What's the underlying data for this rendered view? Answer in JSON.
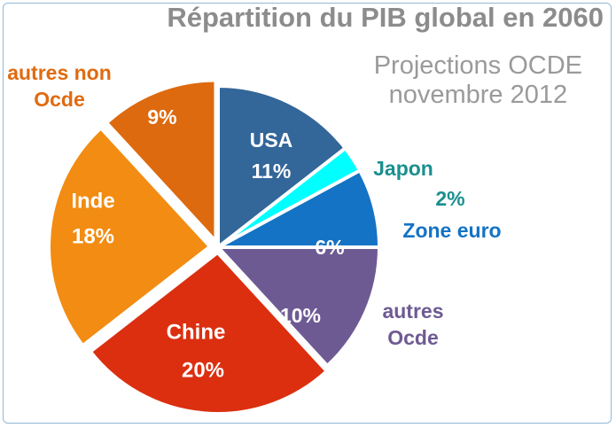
{
  "chart_data": {
    "type": "pie",
    "title": "Répartition du PIB global en 2060",
    "subtitle": [
      "Projections OCDE",
      "novembre 2012"
    ],
    "slices": [
      {
        "label": "USA",
        "value": 11,
        "display": "11%",
        "color": "#336699",
        "label_color": "#ffffff",
        "label_inside": true
      },
      {
        "label": "Japon",
        "value": 2,
        "display": "2%",
        "color": "#00ffff",
        "label_color": "#1a8f8f",
        "label_inside": false
      },
      {
        "label": "Zone euro",
        "value": 6,
        "display": "6%",
        "color": "#1473c4",
        "label_color": "#1473c4",
        "label_inside": false
      },
      {
        "label": "autres Ocde",
        "value": 10,
        "display": "10%",
        "color": "#6e5a93",
        "label_color": "#6e5a93",
        "label_inside": false
      },
      {
        "label": "Chine",
        "value": 20,
        "display": "20%",
        "color": "#db2f10",
        "label_color": "#ffffff",
        "label_inside": true
      },
      {
        "label": "Inde",
        "value": 18,
        "display": "18%",
        "color": "#f28c12",
        "label_color": "#ffffff",
        "label_inside": true
      },
      {
        "label": "autres non Ocde",
        "value": 9,
        "display": "9%",
        "color": "#dd6a0e",
        "label_color": "#e06a10",
        "label_inside": false
      }
    ]
  }
}
